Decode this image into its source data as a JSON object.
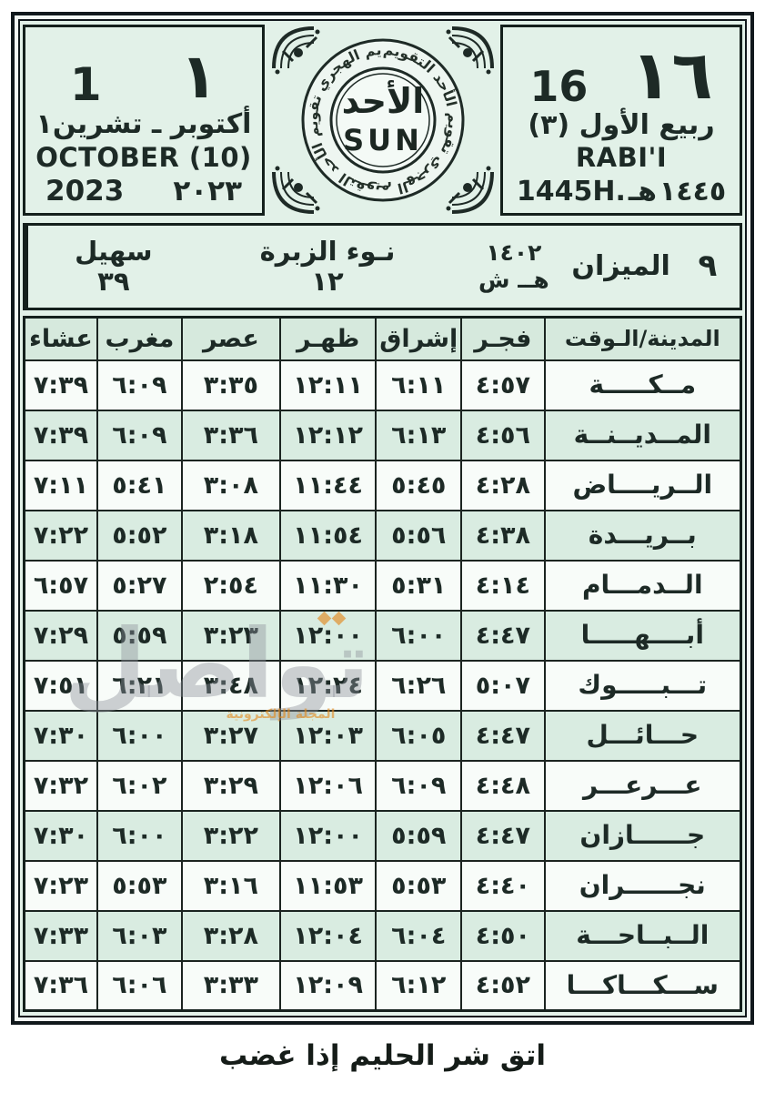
{
  "page": {
    "gregorian_box": {
      "day_latin": "1",
      "day_arabic": "١",
      "month_line": "أكتوبر ـ تشرين١",
      "month_english": "OCTOBER (10)",
      "year_latin": "2023",
      "year_arabic": "٢٠٢٣"
    },
    "logo": {
      "day_arabic": "الأحد",
      "day_english": "SUN",
      "ring_text": "التقويم الهجري تقويم الأحد التقويم الهجري تقويم الأحد التقويم"
    },
    "hijri_box": {
      "day_arabic": "١٦",
      "day_latin": "16",
      "month_line": "ربيع الأول (٣)",
      "month_english": "RABI'I",
      "year_latin": "1445H.",
      "year_heh": "هـ",
      "year_arabic": "١٤٤٥"
    },
    "season_strip": {
      "suhail_name": "سهيل",
      "suhail_value": "٣٩",
      "nau_name": "نـوء الزبرة",
      "nau_value": "١٢",
      "solar_year": "١٤٠٢",
      "solar_era": "هــ ش",
      "zodiac_name": "الميزان",
      "zodiac_day": "٩"
    },
    "watermark": {
      "text": "تواصل",
      "tagline": "المجلة الإلكترونية"
    },
    "footer_proverb": "اتق شر الحليم إذا غضب"
  },
  "prayer_table": {
    "headers": {
      "city": "المدينة/الـوقت",
      "fajr": "فجـر",
      "ishraq": "إشراق",
      "dhuhr": "ظهـر",
      "asr": "عصر",
      "maghrib": "مغرب",
      "isha": "عشاء"
    },
    "rows": [
      {
        "city": "مــكـــــة",
        "fajr": "٤:٥٧",
        "ishraq": "٦:١١",
        "dhuhr": "١٢:١١",
        "asr": "٣:٣٥",
        "maghrib": "٦:٠٩",
        "isha": "٧:٣٩"
      },
      {
        "city": "المــديــنــة",
        "fajr": "٤:٥٦",
        "ishraq": "٦:١٣",
        "dhuhr": "١٢:١٢",
        "asr": "٣:٣٦",
        "maghrib": "٦:٠٩",
        "isha": "٧:٣٩"
      },
      {
        "city": "الــريــــاض",
        "fajr": "٤:٢٨",
        "ishraq": "٥:٤٥",
        "dhuhr": "١١:٤٤",
        "asr": "٣:٠٨",
        "maghrib": "٥:٤١",
        "isha": "٧:١١"
      },
      {
        "city": "بــريـــدة",
        "fajr": "٤:٣٨",
        "ishraq": "٥:٥٦",
        "dhuhr": "١١:٥٤",
        "asr": "٣:١٨",
        "maghrib": "٥:٥٢",
        "isha": "٧:٢٢"
      },
      {
        "city": "الــدمـــام",
        "fajr": "٤:١٤",
        "ishraq": "٥:٣١",
        "dhuhr": "١١:٣٠",
        "asr": "٢:٥٤",
        "maghrib": "٥:٢٧",
        "isha": "٦:٥٧"
      },
      {
        "city": "أبــــهـــــا",
        "fajr": "٤:٤٧",
        "ishraq": "٦:٠٠",
        "dhuhr": "١٢:٠٠",
        "asr": "٣:٢٣",
        "maghrib": "٥:٥٩",
        "isha": "٧:٢٩"
      },
      {
        "city": "تـــبـــــوك",
        "fajr": "٥:٠٧",
        "ishraq": "٦:٢٦",
        "dhuhr": "١٢:٢٤",
        "asr": "٣:٤٨",
        "maghrib": "٦:٢١",
        "isha": "٧:٥١"
      },
      {
        "city": "حـــائـــل",
        "fajr": "٤:٤٧",
        "ishraq": "٦:٠٥",
        "dhuhr": "١٢:٠٣",
        "asr": "٣:٢٧",
        "maghrib": "٦:٠٠",
        "isha": "٧:٣٠"
      },
      {
        "city": "عـــرعـــر",
        "fajr": "٤:٤٨",
        "ishraq": "٦:٠٩",
        "dhuhr": "١٢:٠٦",
        "asr": "٣:٢٩",
        "maghrib": "٦:٠٢",
        "isha": "٧:٣٢"
      },
      {
        "city": "جــــــازان",
        "fajr": "٤:٤٧",
        "ishraq": "٥:٥٩",
        "dhuhr": "١٢:٠٠",
        "asr": "٣:٢٢",
        "maghrib": "٦:٠٠",
        "isha": "٧:٣٠"
      },
      {
        "city": "نجــــــران",
        "fajr": "٤:٤٠",
        "ishraq": "٥:٥٣",
        "dhuhr": "١١:٥٣",
        "asr": "٣:١٦",
        "maghrib": "٥:٥٣",
        "isha": "٧:٢٣"
      },
      {
        "city": "الــبــاحـــة",
        "fajr": "٤:٥٠",
        "ishraq": "٦:٠٤",
        "dhuhr": "١٢:٠٤",
        "asr": "٣:٢٨",
        "maghrib": "٦:٠٣",
        "isha": "٧:٣٣"
      },
      {
        "city": "ســـكـــاكـــا",
        "fajr": "٤:٥٢",
        "ishraq": "٦:١٢",
        "dhuhr": "١٢:٠٩",
        "asr": "٣:٣٣",
        "maghrib": "٦:٠٦",
        "isha": "٧:٣٦"
      }
    ]
  }
}
